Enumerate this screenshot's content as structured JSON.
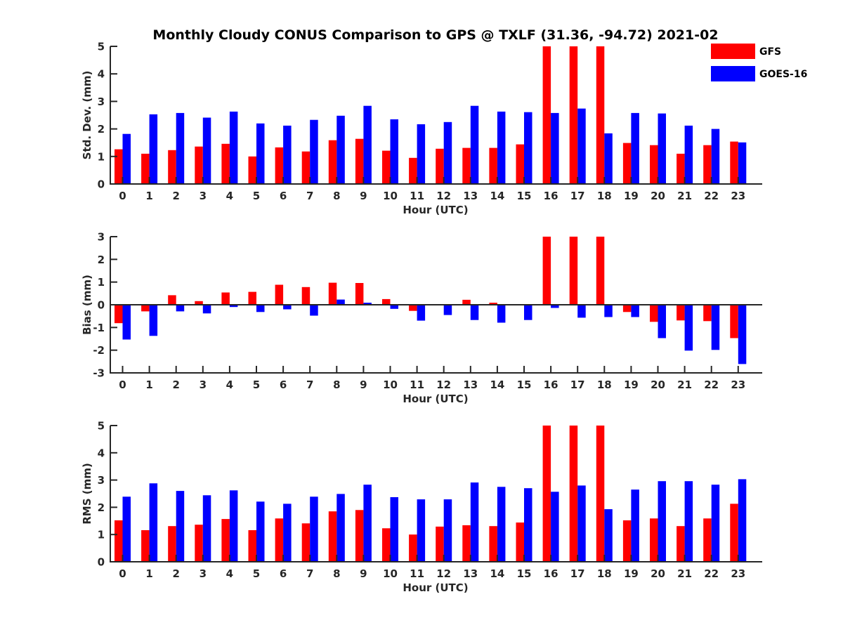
{
  "chart_data": {
    "type": "bar",
    "title": "Monthly Cloudy CONUS Comparison to GPS @ TXLF (31.36, -94.72) 2021-02",
    "legend": {
      "placement": "top-right",
      "entries": [
        {
          "name": "GFS",
          "color": "#ff0000"
        },
        {
          "name": "GOES-16",
          "color": "#0000ff"
        }
      ]
    },
    "categories": [
      "0",
      "1",
      "2",
      "3",
      "4",
      "5",
      "6",
      "7",
      "8",
      "9",
      "10",
      "11",
      "12",
      "13",
      "14",
      "15",
      "16",
      "17",
      "18",
      "19",
      "20",
      "21",
      "22",
      "23"
    ],
    "panels": [
      {
        "id": "std",
        "xlabel": "Hour (UTC)",
        "ylabel": "Std. Dev. (mm)",
        "ylim": [
          0,
          5
        ],
        "yticks": [
          0,
          1,
          2,
          3,
          4,
          5
        ],
        "zero_line": false,
        "series": [
          {
            "name": "GFS",
            "color": "#ff0000",
            "values": [
              1.26,
              1.1,
              1.23,
              1.36,
              1.46,
              1.0,
              1.33,
              1.18,
              1.59,
              1.64,
              1.21,
              0.95,
              1.28,
              1.31,
              1.31,
              1.44,
              5.0,
              5.0,
              5.0,
              1.49,
              1.41,
              1.1,
              1.41,
              1.54
            ]
          },
          {
            "name": "GOES-16",
            "color": "#0000ff",
            "values": [
              1.82,
              2.53,
              2.58,
              2.41,
              2.63,
              2.2,
              2.12,
              2.33,
              2.48,
              2.84,
              2.35,
              2.17,
              2.25,
              2.84,
              2.63,
              2.61,
              2.58,
              2.74,
              1.84,
              2.58,
              2.56,
              2.12,
              2.0,
              1.51
            ]
          }
        ],
        "note": "GFS values at hours 16-18 exceed the axis and are clipped at 5"
      },
      {
        "id": "bias",
        "xlabel": "Hour (UTC)",
        "ylabel": "Bias (mm)",
        "ylim": [
          -3,
          3
        ],
        "yticks": [
          -3,
          -2,
          -1,
          0,
          1,
          2,
          3
        ],
        "zero_line": true,
        "series": [
          {
            "name": "GFS",
            "color": "#ff0000",
            "values": [
              -0.81,
              -0.29,
              0.42,
              0.16,
              0.54,
              0.57,
              0.88,
              0.78,
              0.97,
              0.96,
              0.25,
              -0.27,
              0.0,
              0.22,
              0.09,
              0.03,
              3.0,
              3.0,
              3.0,
              -0.32,
              -0.75,
              -0.69,
              -0.72,
              -1.47
            ]
          },
          {
            "name": "GOES-16",
            "color": "#0000ff",
            "values": [
              -1.53,
              -1.37,
              -0.29,
              -0.38,
              -0.1,
              -0.32,
              -0.2,
              -0.48,
              0.23,
              0.09,
              -0.18,
              -0.7,
              -0.45,
              -0.67,
              -0.79,
              -0.67,
              -0.14,
              -0.57,
              -0.54,
              -0.54,
              -1.47,
              -2.02,
              -1.99,
              -2.61
            ]
          }
        ],
        "note": "GFS values at hours 16-18 exceed the axis and are clipped at 3"
      },
      {
        "id": "rms",
        "xlabel": "Hour (UTC)",
        "ylabel": "RMS (mm)",
        "ylim": [
          0,
          5
        ],
        "yticks": [
          0,
          1,
          2,
          3,
          4,
          5
        ],
        "zero_line": false,
        "series": [
          {
            "name": "GFS",
            "color": "#ff0000",
            "values": [
              1.52,
              1.16,
              1.31,
              1.36,
              1.57,
              1.16,
              1.59,
              1.41,
              1.85,
              1.9,
              1.23,
              1.0,
              1.29,
              1.34,
              1.31,
              1.44,
              5.0,
              5.0,
              5.0,
              1.52,
              1.59,
              1.31,
              1.59,
              2.13
            ]
          },
          {
            "name": "GOES-16",
            "color": "#0000ff",
            "values": [
              2.39,
              2.88,
              2.6,
              2.44,
              2.62,
              2.21,
              2.13,
              2.39,
              2.49,
              2.83,
              2.37,
              2.29,
              2.29,
              2.91,
              2.75,
              2.7,
              2.57,
              2.8,
              1.93,
              2.65,
              2.96,
              2.96,
              2.83,
              3.03
            ]
          }
        ],
        "note": "GFS values at hours 16-18 exceed the axis and are clipped at 5"
      }
    ],
    "grid": false
  }
}
